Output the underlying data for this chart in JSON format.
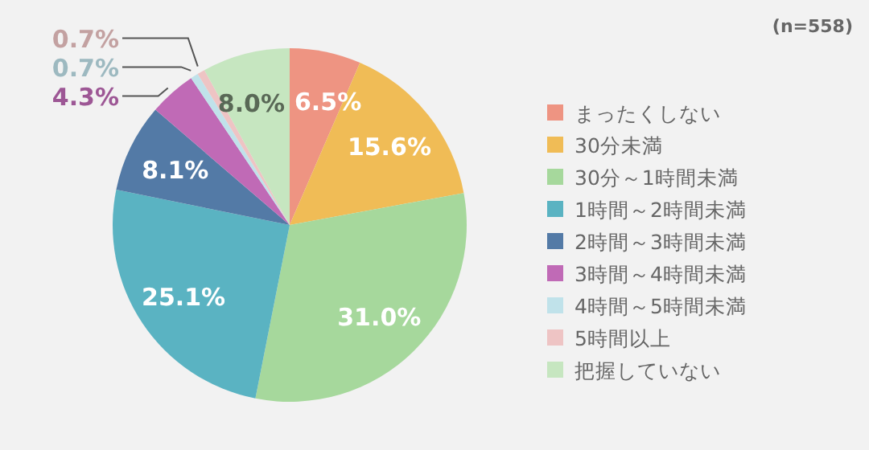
{
  "chart_data": {
    "type": "pie",
    "categories": [
      "まったくしない",
      "30分未満",
      "30分～1時間未満",
      "1時間～2時間未満",
      "2時間～3時間未満",
      "3時間～4時間未満",
      "4時間～5時間未満",
      "5時間以上",
      "把握していない"
    ],
    "values": [
      6.5,
      15.6,
      31.0,
      25.1,
      8.1,
      4.3,
      0.7,
      0.7,
      8.0
    ],
    "value_labels": [
      "6.5%",
      "15.6%",
      "31.0%",
      "25.1%",
      "8.1%",
      "4.3%",
      "0.7%",
      "0.7%",
      "8.0%"
    ],
    "colors": [
      "#ee9482",
      "#f0bc56",
      "#a6d89c",
      "#5ab3c2",
      "#537aa6",
      "#c06ab6",
      "#c0e2ea",
      "#eec4c4",
      "#c6e6c0"
    ],
    "annotations": [
      "(n=558)"
    ],
    "legend": "right"
  }
}
